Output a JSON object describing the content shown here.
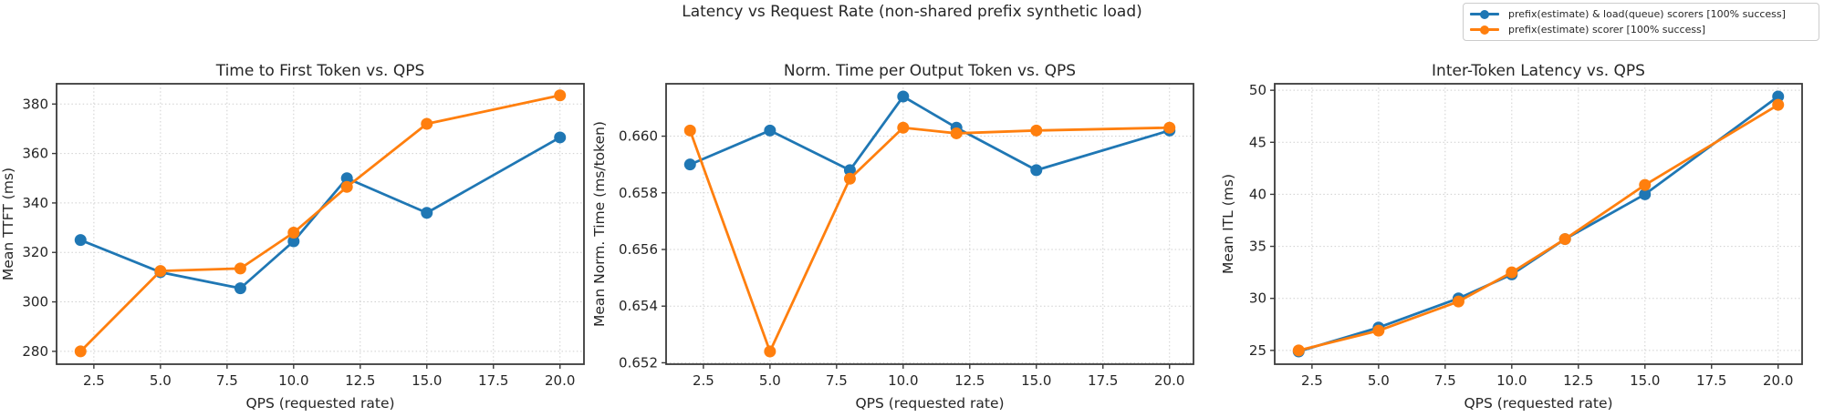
{
  "figure": {
    "title": "Latency vs Request Rate (non-shared prefix synthetic load)"
  },
  "legend": {
    "position": "upper-right",
    "entries": [
      {
        "label": "prefix(estimate) & load(queue) scorers [100% success]",
        "color": "#1f77b4"
      },
      {
        "label": "prefix(estimate) scorer [100% success]",
        "color": "#ff7f0e"
      }
    ]
  },
  "axes_style": {
    "grid_color": "#cfcfcf",
    "spine_color": "#3a3a3a",
    "text_color": "#262626",
    "grid": "dotted"
  },
  "chart_data": [
    {
      "type": "line",
      "title": "Time to First Token vs. QPS",
      "xlabel": "QPS (requested rate)",
      "ylabel": "Mean TTFT (ms)",
      "x": [
        2,
        5,
        8,
        10,
        12,
        15,
        20
      ],
      "series": [
        {
          "name": "prefix(estimate) & load(queue) scorers [100% success]",
          "color": "#1f77b4",
          "values": [
            325,
            312,
            305.5,
            324.5,
            350,
            336,
            366.5
          ]
        },
        {
          "name": "prefix(estimate) scorer [100% success]",
          "color": "#ff7f0e",
          "values": [
            280,
            312.5,
            313.5,
            328,
            346.5,
            372,
            383.5
          ]
        }
      ],
      "xlim": [
        1.1,
        20.9
      ],
      "ylim": [
        274.8,
        388.2
      ],
      "xticks": {
        "values": [
          2.5,
          5,
          7.5,
          10,
          12.5,
          15,
          17.5,
          20
        ],
        "labels": [
          "2.5",
          "5.0",
          "7.5",
          "10.0",
          "12.5",
          "15.0",
          "17.5",
          "20.0"
        ]
      },
      "yticks": {
        "values": [
          280,
          300,
          320,
          340,
          360,
          380
        ],
        "labels": [
          "280",
          "300",
          "320",
          "340",
          "360",
          "380"
        ]
      },
      "grid": true,
      "legend_position": "none"
    },
    {
      "type": "line",
      "title": "Norm. Time per Output Token vs. QPS",
      "xlabel": "QPS (requested rate)",
      "ylabel": "Mean Norm. Time (ms/token)",
      "x": [
        2,
        5,
        8,
        10,
        12,
        15,
        20
      ],
      "series": [
        {
          "name": "prefix(estimate) & load(queue) scorers [100% success]",
          "color": "#1f77b4",
          "values": [
            0.659,
            0.6602,
            0.6588,
            0.6614,
            0.6603,
            0.6588,
            0.6602
          ]
        },
        {
          "name": "prefix(estimate) scorer [100% success]",
          "color": "#ff7f0e",
          "values": [
            0.6602,
            0.6524,
            0.6585,
            0.6603,
            0.6601,
            0.6602,
            0.6603
          ]
        }
      ],
      "xlim": [
        1.1,
        20.9
      ],
      "ylim": [
        0.65195,
        0.66185
      ],
      "xticks": {
        "values": [
          2.5,
          5,
          7.5,
          10,
          12.5,
          15,
          17.5,
          20
        ],
        "labels": [
          "2.5",
          "5.0",
          "7.5",
          "10.0",
          "12.5",
          "15.0",
          "17.5",
          "20.0"
        ]
      },
      "yticks": {
        "values": [
          0.652,
          0.654,
          0.656,
          0.658,
          0.66
        ],
        "labels": [
          "0.652",
          "0.654",
          "0.656",
          "0.658",
          "0.660"
        ]
      },
      "grid": true,
      "legend_position": "none"
    },
    {
      "type": "line",
      "title": "Inter-Token Latency vs. QPS",
      "xlabel": "QPS (requested rate)",
      "ylabel": "Mean ITL (ms)",
      "x": [
        2,
        5,
        8,
        10,
        12,
        15,
        20
      ],
      "series": [
        {
          "name": "prefix(estimate) & load(queue) scorers [100% success]",
          "color": "#1f77b4",
          "values": [
            24.9,
            27.2,
            30.0,
            32.3,
            35.7,
            40.0,
            49.4
          ]
        },
        {
          "name": "prefix(estimate) scorer [100% success]",
          "color": "#ff7f0e",
          "values": [
            25.0,
            26.9,
            29.7,
            32.5,
            35.7,
            40.9,
            48.6
          ]
        }
      ],
      "xlim": [
        1.1,
        20.9
      ],
      "ylim": [
        23.675,
        50.625
      ],
      "xticks": {
        "values": [
          2.5,
          5,
          7.5,
          10,
          12.5,
          15,
          17.5,
          20
        ],
        "labels": [
          "2.5",
          "5.0",
          "7.5",
          "10.0",
          "12.5",
          "15.0",
          "17.5",
          "20.0"
        ]
      },
      "yticks": {
        "values": [
          25,
          30,
          35,
          40,
          45,
          50
        ],
        "labels": [
          "25",
          "30",
          "35",
          "40",
          "45",
          "50"
        ]
      },
      "grid": true,
      "legend_position": "none"
    }
  ]
}
